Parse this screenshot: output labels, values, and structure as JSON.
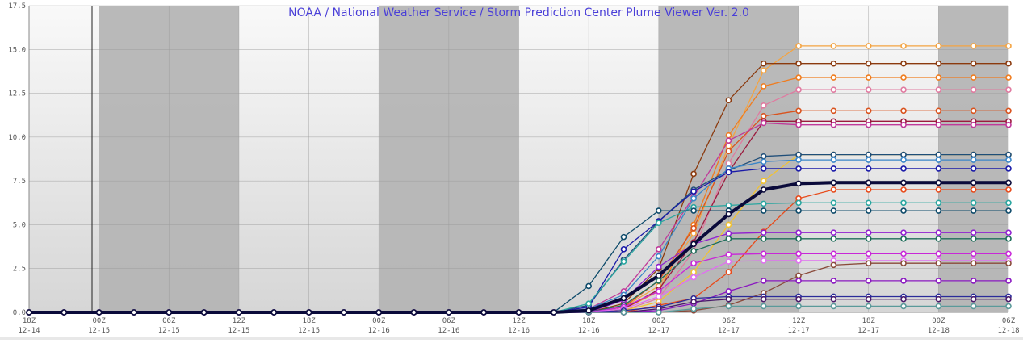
{
  "chart_data": {
    "type": "line",
    "title": "NOAA / National Weather Service / Storm Prediction Center Plume Viewer Ver. 2.0",
    "xlabel": "",
    "ylabel": "",
    "ylim": [
      0,
      17.5
    ],
    "y_ticks": [
      "0.0",
      "2.5",
      "5.0",
      "7.5",
      "10.0",
      "12.5",
      "15.0",
      "17.5"
    ],
    "x_ticks": [
      {
        "line1": "18Z",
        "line2": "12-14"
      },
      {
        "line1": "00Z",
        "line2": "12-15"
      },
      {
        "line1": "06Z",
        "line2": "12-15"
      },
      {
        "line1": "12Z",
        "line2": "12-15"
      },
      {
        "line1": "18Z",
        "line2": "12-15"
      },
      {
        "line1": "00Z",
        "line2": "12-16"
      },
      {
        "line1": "06Z",
        "line2": "12-16"
      },
      {
        "line1": "12Z",
        "line2": "12-16"
      },
      {
        "line1": "18Z",
        "line2": "12-16"
      },
      {
        "line1": "00Z",
        "line2": "12-17"
      },
      {
        "line1": "06Z",
        "line2": "12-17"
      },
      {
        "line1": "12Z",
        "line2": "12-17"
      },
      {
        "line1": "18Z",
        "line2": "12-17"
      },
      {
        "line1": "00Z",
        "line2": "12-18"
      },
      {
        "line1": "06Z",
        "line2": "12-18"
      }
    ],
    "x": [
      "12-14 18Z",
      "12-14 21Z",
      "12-15 00Z",
      "12-15 03Z",
      "12-15 06Z",
      "12-15 09Z",
      "12-15 12Z",
      "12-15 15Z",
      "12-15 18Z",
      "12-15 21Z",
      "12-16 00Z",
      "12-16 03Z",
      "12-16 06Z",
      "12-16 09Z",
      "12-16 12Z",
      "12-16 15Z",
      "12-16 18Z",
      "12-16 21Z",
      "12-17 00Z",
      "12-17 03Z",
      "12-17 06Z",
      "12-17 09Z",
      "12-17 12Z",
      "12-17 15Z",
      "12-17 18Z",
      "12-17 21Z",
      "12-18 00Z",
      "12-18 03Z",
      "12-18 06Z"
    ],
    "grid": true,
    "colors": {
      "shade_band": "#b5b5b5",
      "mean_line": "#0a0a3a",
      "title": "#4a3fd8"
    },
    "series": [
      {
        "color": "#0a0a3a",
        "mean": true,
        "values": [
          0,
          0,
          0,
          0,
          0,
          0,
          0,
          0,
          0,
          0,
          0,
          0,
          0,
          0,
          0,
          0,
          0.1,
          0.8,
          2.1,
          3.9,
          5.6,
          7.0,
          7.35,
          7.4,
          7.4,
          7.4,
          7.4,
          7.4,
          7.4
        ]
      },
      {
        "color": "#f4a442",
        "values": [
          0,
          0,
          0,
          0,
          0,
          0,
          0,
          0,
          0,
          0,
          0,
          0,
          0,
          0,
          0,
          0,
          0,
          0.3,
          1.5,
          4.5,
          9.5,
          13.8,
          15.2,
          15.2,
          15.2,
          15.2,
          15.2,
          15.2,
          15.2
        ]
      },
      {
        "color": "#8b3a0e",
        "values": [
          0,
          0,
          0,
          0,
          0,
          0,
          0,
          0,
          0,
          0,
          0,
          0,
          0,
          0,
          0,
          0,
          0,
          0.5,
          2.5,
          7.9,
          12.1,
          14.2,
          14.2,
          14.2,
          14.2,
          14.2,
          14.2,
          14.2,
          14.2
        ]
      },
      {
        "color": "#f07c1e",
        "values": [
          0,
          0,
          0,
          0,
          0,
          0,
          0,
          0,
          0,
          0,
          0,
          0,
          0,
          0,
          0,
          0,
          0,
          0.2,
          1.2,
          5.0,
          10.1,
          12.9,
          13.4,
          13.4,
          13.4,
          13.4,
          13.4,
          13.4,
          13.4
        ]
      },
      {
        "color": "#e07aa0",
        "values": [
          0,
          0,
          0,
          0,
          0,
          0,
          0,
          0,
          0,
          0,
          0,
          0,
          0,
          0,
          0,
          0,
          0,
          0.1,
          0.8,
          3.5,
          8.5,
          11.8,
          12.7,
          12.7,
          12.7,
          12.7,
          12.7,
          12.7,
          12.7
        ]
      },
      {
        "color": "#d9531e",
        "values": [
          0,
          0,
          0,
          0,
          0,
          0,
          0,
          0,
          0,
          0,
          0,
          0,
          0,
          0,
          0,
          0,
          0,
          0.3,
          1.8,
          4.8,
          9.2,
          11.2,
          11.5,
          11.5,
          11.5,
          11.5,
          11.5,
          11.5,
          11.5
        ]
      },
      {
        "color": "#9b1b3e",
        "values": [
          0,
          0,
          0,
          0,
          0,
          0,
          0,
          0,
          0,
          0,
          0,
          0,
          0,
          0,
          0,
          0,
          0,
          0.2,
          1.3,
          4.0,
          8.0,
          10.9,
          10.9,
          10.9,
          10.9,
          10.9,
          10.9,
          10.9,
          10.9
        ]
      },
      {
        "color": "#c0399a",
        "values": [
          0,
          0,
          0,
          0,
          0,
          0,
          0,
          0,
          0,
          0,
          0,
          0,
          0,
          0,
          0,
          0,
          0.2,
          1.2,
          3.6,
          6.6,
          9.8,
          10.8,
          10.7,
          10.7,
          10.7,
          10.7,
          10.7,
          10.7,
          10.7
        ]
      },
      {
        "color": "#f2c230",
        "values": [
          0,
          0,
          0,
          0,
          0,
          0,
          0,
          0,
          0,
          0,
          0,
          0,
          0,
          0,
          0,
          0,
          0,
          0.1,
          0.6,
          2.3,
          5.0,
          7.5,
          9.0,
          9.0,
          9.0,
          9.0,
          9.0,
          9.0,
          9.0
        ]
      },
      {
        "color": "#1f4e79",
        "values": [
          0,
          0,
          0,
          0,
          0,
          0,
          0,
          0,
          0,
          0,
          0,
          0,
          0,
          0,
          0,
          0,
          0.4,
          3.0,
          5.2,
          7.0,
          8.1,
          8.9,
          9.0,
          9.0,
          9.0,
          9.0,
          9.0,
          9.0,
          9.0
        ]
      },
      {
        "color": "#3a86c8",
        "values": [
          0,
          0,
          0,
          0,
          0,
          0,
          0,
          0,
          0,
          0,
          0,
          0,
          0,
          0,
          0,
          0,
          0.2,
          1.0,
          3.2,
          6.5,
          8.2,
          8.6,
          8.7,
          8.7,
          8.7,
          8.7,
          8.7,
          8.7,
          8.7
        ]
      },
      {
        "color": "#1a1aa8",
        "values": [
          0,
          0,
          0,
          0,
          0,
          0,
          0,
          0,
          0,
          0,
          0,
          0,
          0,
          0,
          0,
          0,
          0.3,
          3.6,
          5.2,
          6.9,
          8.0,
          8.2,
          8.2,
          8.2,
          8.2,
          8.2,
          8.2,
          8.2,
          8.2
        ]
      },
      {
        "color": "#e84a1a",
        "values": [
          0,
          0,
          0,
          0,
          0,
          0,
          0,
          0,
          0,
          0,
          0,
          0,
          0,
          0,
          0,
          0,
          0,
          0,
          0.4,
          0.8,
          2.3,
          4.6,
          6.5,
          7.0,
          7.0,
          7.0,
          7.0,
          7.0,
          7.0
        ]
      },
      {
        "color": "#2aa6a0",
        "values": [
          0,
          0,
          0,
          0,
          0,
          0,
          0,
          0,
          0,
          0,
          0,
          0,
          0,
          0,
          0,
          0,
          0.5,
          2.9,
          5.1,
          6.0,
          6.1,
          6.2,
          6.25,
          6.25,
          6.25,
          6.25,
          6.25,
          6.25,
          6.25
        ]
      },
      {
        "color": "#0d4a6a",
        "values": [
          0,
          0,
          0,
          0,
          0,
          0,
          0,
          0,
          0,
          0,
          0,
          0,
          0,
          0,
          0,
          0,
          1.5,
          4.3,
          5.8,
          5.8,
          5.8,
          5.8,
          5.8,
          5.8,
          5.8,
          5.8,
          5.8,
          5.8,
          5.8
        ]
      },
      {
        "color": "#9020d0",
        "values": [
          0,
          0,
          0,
          0,
          0,
          0,
          0,
          0,
          0,
          0,
          0,
          0,
          0,
          0,
          0,
          0,
          0,
          0.7,
          2.6,
          3.9,
          4.5,
          4.55,
          4.55,
          4.55,
          4.55,
          4.55,
          4.55,
          4.55,
          4.55
        ]
      },
      {
        "color": "#1e6e5a",
        "values": [
          0,
          0,
          0,
          0,
          0,
          0,
          0,
          0,
          0,
          0,
          0,
          0,
          0,
          0,
          0,
          0,
          0,
          0.4,
          1.8,
          3.5,
          4.2,
          4.2,
          4.2,
          4.2,
          4.2,
          4.2,
          4.2,
          4.2,
          4.2
        ]
      },
      {
        "color": "#c827d8",
        "values": [
          0,
          0,
          0,
          0,
          0,
          0,
          0,
          0,
          0,
          0,
          0,
          0,
          0,
          0,
          0,
          0,
          0,
          0.3,
          1.2,
          2.8,
          3.3,
          3.35,
          3.35,
          3.35,
          3.35,
          3.35,
          3.35,
          3.35,
          3.35
        ]
      },
      {
        "color": "#e070f0",
        "values": [
          0,
          0,
          0,
          0,
          0,
          0,
          0,
          0,
          0,
          0,
          0,
          0,
          0,
          0,
          0,
          0,
          0,
          0.2,
          0.9,
          2.0,
          2.9,
          2.95,
          2.95,
          2.95,
          2.95,
          2.95,
          2.95,
          2.95,
          2.95
        ]
      },
      {
        "color": "#8a4a3a",
        "values": [
          0,
          0,
          0,
          0,
          0,
          0,
          0,
          0,
          0,
          0,
          0,
          0,
          0,
          0,
          0,
          0,
          0,
          0,
          0,
          0.1,
          0.4,
          1.1,
          2.1,
          2.7,
          2.8,
          2.8,
          2.8,
          2.8,
          2.8
        ]
      },
      {
        "color": "#8a18c0",
        "values": [
          0,
          0,
          0,
          0,
          0,
          0,
          0,
          0,
          0,
          0,
          0,
          0,
          0,
          0,
          0,
          0,
          0,
          0,
          0.1,
          0.5,
          1.2,
          1.8,
          1.8,
          1.8,
          1.8,
          1.8,
          1.8,
          1.8,
          1.8
        ]
      },
      {
        "color": "#2b2b9a",
        "values": [
          0,
          0,
          0,
          0,
          0,
          0,
          0,
          0,
          0,
          0,
          0,
          0,
          0,
          0,
          0,
          0,
          0,
          0.1,
          0.3,
          0.8,
          0.9,
          0.9,
          0.9,
          0.9,
          0.9,
          0.9,
          0.9,
          0.9,
          0.9
        ]
      },
      {
        "color": "#4a1a6a",
        "values": [
          0,
          0,
          0,
          0,
          0,
          0,
          0,
          0,
          0,
          0,
          0,
          0,
          0,
          0,
          0,
          0,
          0,
          0,
          0.2,
          0.6,
          0.75,
          0.75,
          0.75,
          0.75,
          0.75,
          0.75,
          0.75,
          0.75,
          0.75
        ]
      },
      {
        "color": "#5a9a9a",
        "values": [
          0,
          0,
          0,
          0,
          0,
          0,
          0,
          0,
          0,
          0,
          0,
          0,
          0,
          0,
          0,
          0,
          0,
          0,
          0,
          0.2,
          0.35,
          0.35,
          0.35,
          0.35,
          0.35,
          0.35,
          0.35,
          0.35,
          0.35
        ]
      }
    ]
  }
}
